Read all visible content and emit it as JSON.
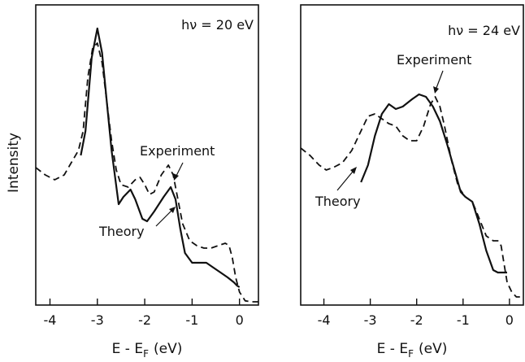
{
  "y_axis_label": "Intensity",
  "chart_data": [
    {
      "type": "line",
      "annotation": "hν = 20 eV",
      "xlabel": "E - E",
      "xlabel_sub": "F",
      "xlabel_unit": "(eV)",
      "xlim": [
        -4.3,
        0.4
      ],
      "xticks": [
        -4,
        -3,
        -2,
        -1,
        0
      ],
      "series": [
        {
          "name": "Theory",
          "x": [
            -3.35,
            -3.25,
            -3.12,
            -3.0,
            -2.9,
            -2.8,
            -2.7,
            -2.55,
            -2.45,
            -2.3,
            -2.2,
            -2.05,
            -1.95,
            -1.8,
            -1.6,
            -1.45,
            -1.35,
            -1.25,
            -1.15,
            -1.0,
            -0.85,
            -0.7,
            -0.55,
            -0.4,
            -0.25,
            -0.12,
            -0.05,
            0.0
          ],
          "y": [
            2.7,
            3.2,
            4.7,
            5.3,
            4.8,
            3.8,
            2.8,
            1.7,
            1.85,
            2.0,
            1.8,
            1.4,
            1.35,
            1.55,
            1.85,
            2.05,
            1.8,
            1.2,
            0.7,
            0.5,
            0.5,
            0.5,
            0.4,
            0.3,
            0.2,
            0.1,
            0.03,
            0.0
          ]
        },
        {
          "name": "Experiment",
          "x": [
            -4.3,
            -4.1,
            -3.9,
            -3.7,
            -3.55,
            -3.4,
            -3.3,
            -3.2,
            -3.1,
            -3.0,
            -2.9,
            -2.8,
            -2.7,
            -2.6,
            -2.5,
            -2.35,
            -2.2,
            -2.1,
            -2.0,
            -1.9,
            -1.8,
            -1.65,
            -1.5,
            -1.4,
            -1.3,
            -1.2,
            -1.05,
            -0.9,
            -0.75,
            -0.6,
            -0.45,
            -0.3,
            -0.22,
            -0.15,
            -0.08,
            0.0,
            0.12,
            0.25,
            0.4
          ],
          "y": [
            2.45,
            2.3,
            2.2,
            2.3,
            2.55,
            2.8,
            3.2,
            4.3,
            4.9,
            5.0,
            4.6,
            3.8,
            3.0,
            2.4,
            2.1,
            2.05,
            2.2,
            2.25,
            2.1,
            1.9,
            1.95,
            2.3,
            2.5,
            2.3,
            1.8,
            1.3,
            0.95,
            0.85,
            0.8,
            0.8,
            0.85,
            0.9,
            0.85,
            0.6,
            0.2,
            -0.1,
            -0.28,
            -0.3,
            -0.3
          ]
        }
      ]
    },
    {
      "type": "line",
      "annotation": "hν = 24 eV",
      "xlabel": "E - E",
      "xlabel_sub": "F",
      "xlabel_unit": "(eV)",
      "xlim": [
        -4.5,
        0.3
      ],
      "xticks": [
        -4,
        -3,
        -2,
        -1,
        0
      ],
      "series": [
        {
          "name": "Theory",
          "x": [
            -3.2,
            -3.05,
            -2.9,
            -2.75,
            -2.6,
            -2.45,
            -2.3,
            -2.1,
            -1.95,
            -1.8,
            -1.65,
            -1.5,
            -1.35,
            -1.2,
            -1.05,
            -0.95,
            -0.8,
            -0.65,
            -0.5,
            -0.35,
            -0.25,
            -0.15,
            -0.05
          ],
          "y": [
            2.15,
            2.5,
            3.1,
            3.55,
            3.75,
            3.65,
            3.7,
            3.85,
            3.95,
            3.9,
            3.7,
            3.4,
            2.95,
            2.45,
            1.95,
            1.85,
            1.75,
            1.3,
            0.75,
            0.35,
            0.3,
            0.3,
            0.3
          ]
        },
        {
          "name": "Experiment",
          "x": [
            -4.5,
            -4.3,
            -4.1,
            -3.95,
            -3.8,
            -3.6,
            -3.4,
            -3.2,
            -3.05,
            -2.9,
            -2.75,
            -2.6,
            -2.45,
            -2.3,
            -2.15,
            -2.0,
            -1.85,
            -1.7,
            -1.6,
            -1.5,
            -1.4,
            -1.25,
            -1.1,
            -0.95,
            -0.8,
            -0.65,
            -0.5,
            -0.35,
            -0.25,
            -0.18,
            -0.12,
            -0.05,
            0.05,
            0.15,
            0.3
          ],
          "y": [
            2.85,
            2.7,
            2.5,
            2.4,
            2.45,
            2.55,
            2.8,
            3.2,
            3.5,
            3.55,
            3.45,
            3.35,
            3.3,
            3.1,
            3.0,
            3.0,
            3.3,
            3.75,
            3.9,
            3.7,
            3.3,
            2.6,
            2.05,
            1.85,
            1.75,
            1.4,
            1.05,
            0.95,
            0.95,
            0.85,
            0.5,
            0.1,
            -0.1,
            -0.2,
            -0.2
          ]
        }
      ]
    }
  ]
}
